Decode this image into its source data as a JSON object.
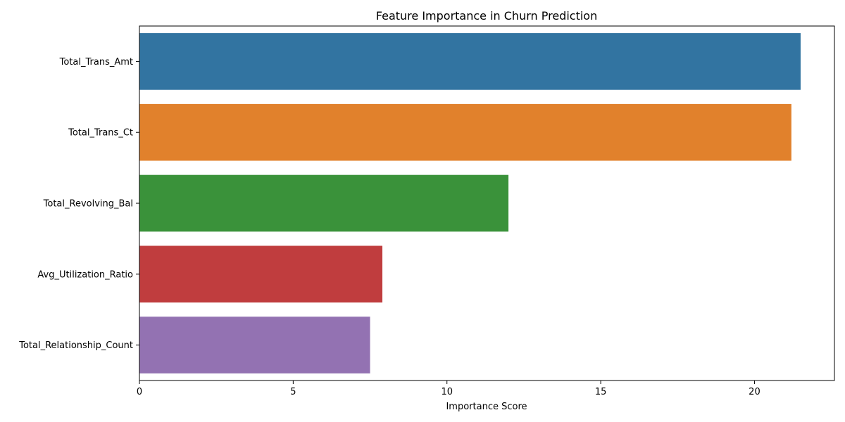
{
  "chart_data": {
    "type": "bar",
    "orientation": "horizontal",
    "title": "Feature Importance in Churn Prediction",
    "xlabel": "Importance Score",
    "ylabel": "",
    "categories": [
      "Total_Trans_Amt",
      "Total_Trans_Ct",
      "Total_Revolving_Bal",
      "Avg_Utilization_Ratio",
      "Total_Relationship_Count"
    ],
    "values": [
      21.5,
      21.2,
      12.0,
      7.9,
      7.5
    ],
    "colors": [
      "#3274a1",
      "#e1812c",
      "#3a923a",
      "#c03d3e",
      "#9372b2"
    ],
    "xlim": [
      0,
      22.6
    ],
    "xticks": [
      0,
      5,
      10,
      15,
      20
    ],
    "grid": false,
    "legend": "none"
  }
}
